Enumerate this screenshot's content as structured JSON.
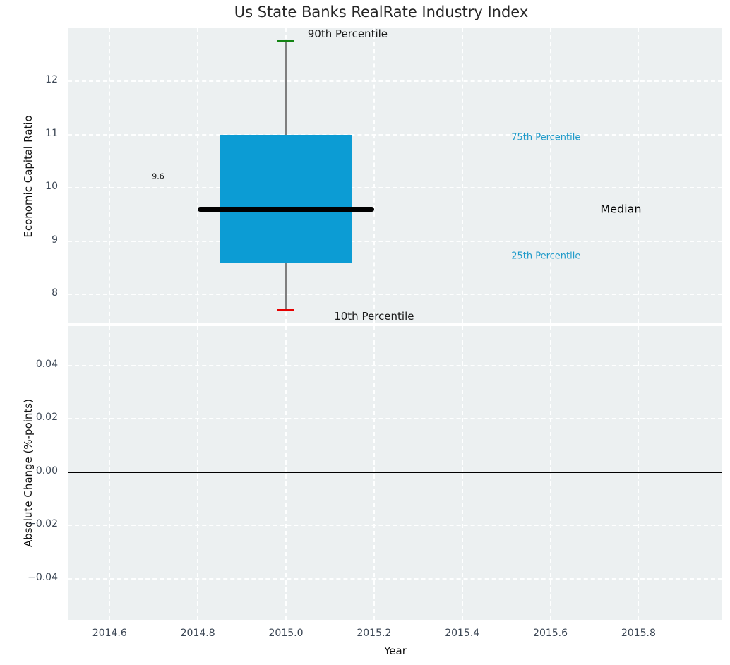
{
  "figure": {
    "title": "Us State Banks RealRate Industry Index"
  },
  "colors": {
    "plot_bg": "#ecf0f1",
    "grid": "rgba(255,255,255,0.95)",
    "box_fill": "#0c9cd4",
    "median_line": "#000000",
    "whisker": "#7f7f7f",
    "cap_high": "#128312",
    "cap_low": "#e60000",
    "zero_line": "#000000",
    "tick_label": "#3b4654",
    "annotation_blue": "#1e9ac9",
    "text_dark": "#1a1a1a"
  },
  "chart_data": [
    {
      "type": "boxplot",
      "title": "Us State Banks RealRate Industry Index",
      "ylabel": "Economic Capital Ratio",
      "x_ticks": [
        2014.6,
        2014.8,
        2015.0,
        2015.2,
        2015.4,
        2015.6,
        2015.8
      ],
      "xlim": [
        2014.505,
        2015.99
      ],
      "y_ticks": [
        8,
        9,
        10,
        11,
        12
      ],
      "y_tick_labels": [
        "8",
        "9",
        "10",
        "11",
        "12"
      ],
      "ylim": [
        7.46,
        13.01
      ],
      "grid": "dashed-white",
      "series": [
        {
          "name": "Economic Capital Ratio box",
          "x": 2015.0,
          "median": 9.6,
          "q1": 8.6,
          "q3": 11.0,
          "whisker_low": 7.7,
          "whisker_high": 12.75,
          "box_width": 0.3,
          "median_x_range": [
            2014.8,
            2015.2
          ]
        }
      ],
      "annotations": [
        {
          "text": "90th Percentile",
          "x": 2015.14,
          "y": 12.89,
          "color": "#1a1a1a",
          "size": 15
        },
        {
          "text": "10th Percentile",
          "x": 2015.2,
          "y": 7.59,
          "color": "#1a1a1a",
          "size": 15
        },
        {
          "text": "75th Percentile",
          "x": 2015.59,
          "y": 10.95,
          "color": "#1e9ac9",
          "size": 13
        },
        {
          "text": "25th Percentile",
          "x": 2015.59,
          "y": 8.72,
          "color": "#1e9ac9",
          "size": 13
        },
        {
          "text": "Median",
          "x": 2015.76,
          "y": 9.6,
          "color": "#000000",
          "size": 16
        },
        {
          "text": "9.6",
          "x": 2014.71,
          "y": 10.21,
          "color": "#1a1a1a",
          "size": 11
        }
      ]
    },
    {
      "type": "line",
      "ylabel": "Absolute Change (%-points)",
      "xlabel": "Year",
      "x_ticks": [
        2014.6,
        2014.8,
        2015.0,
        2015.2,
        2015.4,
        2015.6,
        2015.8
      ],
      "x_tick_labels": [
        "2014.6",
        "2014.8",
        "2015.0",
        "2015.2",
        "2015.4",
        "2015.6",
        "2015.8"
      ],
      "xlim": [
        2014.505,
        2015.99
      ],
      "y_ticks": [
        0.04,
        0.02,
        0.0,
        -0.02,
        -0.04
      ],
      "y_tick_labels": [
        "0.04",
        "0.02",
        "0.00",
        "−0.02",
        "−0.04"
      ],
      "ylim": [
        -0.0554,
        0.0548
      ],
      "grid": "dashed-white",
      "zero_line": 0.0,
      "values": []
    }
  ]
}
